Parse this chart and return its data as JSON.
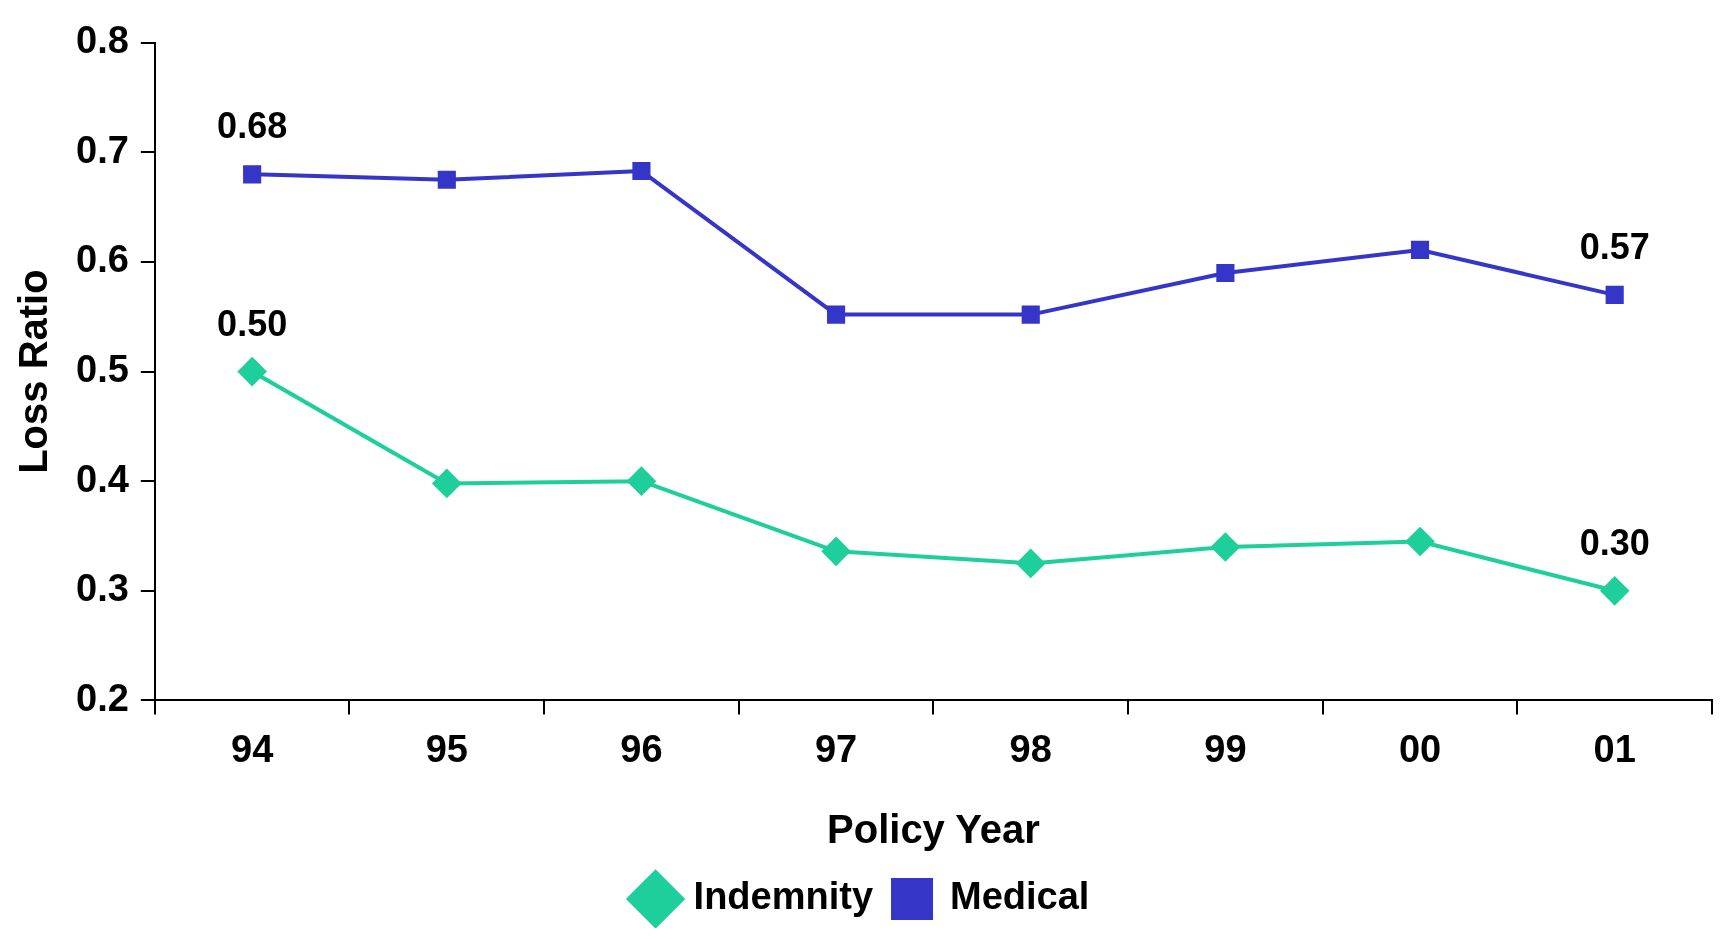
{
  "chart_data": {
    "type": "line",
    "xlabel": "Policy Year",
    "ylabel": "Loss Ratio",
    "categories": [
      "94",
      "95",
      "96",
      "97",
      "98",
      "99",
      "00",
      "01"
    ],
    "series": [
      {
        "name": "Indemnity",
        "color": "#1fcf9b",
        "marker": "diamond",
        "values": [
          0.5,
          0.398,
          0.4,
          0.336,
          0.325,
          0.34,
          0.345,
          0.3
        ],
        "value_labels": [
          "0.50",
          null,
          null,
          null,
          null,
          null,
          null,
          "0.30"
        ]
      },
      {
        "name": "Medical",
        "color": "#3535c8",
        "marker": "square",
        "values": [
          0.68,
          0.675,
          0.683,
          0.552,
          0.552,
          0.59,
          0.611,
          0.57
        ],
        "value_labels": [
          "0.68",
          null,
          null,
          null,
          null,
          null,
          null,
          "0.57"
        ]
      }
    ],
    "ylim": [
      0.2,
      0.8
    ],
    "yticks": [
      0.2,
      0.3,
      0.4,
      0.5,
      0.6,
      0.7,
      0.8
    ],
    "grid": false,
    "legend": "bottom"
  }
}
